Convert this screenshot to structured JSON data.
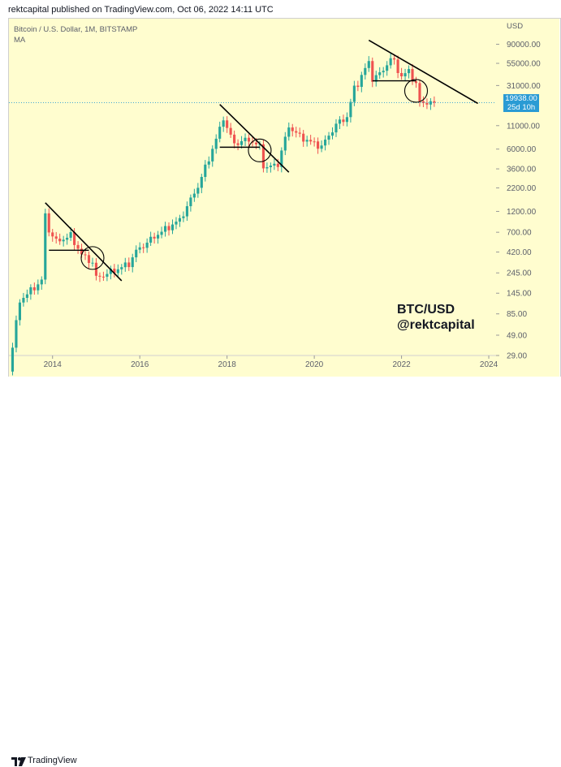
{
  "header": {
    "text": "rektcapital published on TradingView.com, Oct 06, 2022 14:11 UTC"
  },
  "footer": {
    "brand": "TradingView"
  },
  "legend": {
    "title": "Bitcoin / U.S. Dollar, 1M, BITSTAMP",
    "indicator": "MA"
  },
  "watermark": {
    "line1": "BTC/USD",
    "line2": "@rektcapital"
  },
  "price_axis": {
    "currency": "USD",
    "last_price": "19938.00",
    "countdown": "25d 10h"
  },
  "colors": {
    "background": "#fffdcf",
    "up": "#26a69a",
    "down": "#ef5350",
    "price_box": "#2a9bd4",
    "trendline": "#000000",
    "price_line": "#2a9bd4"
  },
  "chart_data": {
    "type": "candlestick",
    "title": "Bitcoin / U.S. Dollar, 1M, BITSTAMP",
    "y_scale": "log",
    "ylim": [
      29,
      130000
    ],
    "xlim": [
      "2013-01",
      "2024-03"
    ],
    "x_ticks": [
      "2014",
      "2016",
      "2018",
      "2020",
      "2022",
      "2024"
    ],
    "y_ticks": [
      "90000.00",
      "55000.00",
      "31000.00",
      "11000.00",
      "6000.00",
      "3600.00",
      "2200.00",
      "1200.00",
      "700.00",
      "420.00",
      "245.00",
      "145.00",
      "85.00",
      "49.00",
      "29.00"
    ],
    "last_price": 19938,
    "close_path": [
      [
        "2013-01",
        20
      ],
      [
        "2013-04",
        120
      ],
      [
        "2013-10",
        200
      ],
      [
        "2013-11",
        1100
      ],
      [
        "2013-12",
        740
      ],
      [
        "2014-02",
        550
      ],
      [
        "2014-06",
        640
      ],
      [
        "2014-09",
        390
      ],
      [
        "2014-12",
        320
      ],
      [
        "2015-01",
        215
      ],
      [
        "2015-06",
        260
      ],
      [
        "2015-10",
        310
      ],
      [
        "2015-12",
        430
      ],
      [
        "2016-06",
        670
      ],
      [
        "2016-12",
        960
      ],
      [
        "2017-05",
        2300
      ],
      [
        "2017-08",
        4700
      ],
      [
        "2017-11",
        10000
      ],
      [
        "2017-12",
        13800
      ],
      [
        "2018-01",
        10200
      ],
      [
        "2018-03",
        6900
      ],
      [
        "2018-07",
        7700
      ],
      [
        "2018-10",
        6300
      ],
      [
        "2018-11",
        4000
      ],
      [
        "2018-12",
        3700
      ],
      [
        "2019-03",
        4100
      ],
      [
        "2019-06",
        10800
      ],
      [
        "2019-09",
        8300
      ],
      [
        "2019-12",
        7200
      ],
      [
        "2020-03",
        6400
      ],
      [
        "2020-07",
        11300
      ],
      [
        "2020-10",
        13800
      ],
      [
        "2020-12",
        29000
      ],
      [
        "2021-01",
        33000
      ],
      [
        "2021-04",
        57000
      ],
      [
        "2021-05",
        37000
      ],
      [
        "2021-07",
        41500
      ],
      [
        "2021-10",
        61300
      ],
      [
        "2021-11",
        57000
      ],
      [
        "2022-01",
        38500
      ],
      [
        "2022-03",
        45500
      ],
      [
        "2022-05",
        31700
      ],
      [
        "2022-06",
        19900
      ],
      [
        "2022-08",
        20000
      ],
      [
        "2022-10",
        19938
      ]
    ],
    "annotations": {
      "trendlines": [
        {
          "start": [
            "2013-11",
            1500
          ],
          "end": [
            "2015-08",
            200
          ]
        },
        {
          "start": [
            "2017-11",
            19000
          ],
          "end": [
            "2019-06",
            3300
          ]
        },
        {
          "start": [
            "2021-04",
            100000
          ],
          "end": [
            "2023-10",
            19500
          ]
        }
      ],
      "support_lines": [
        {
          "start": [
            "2013-12",
            440
          ],
          "end": [
            "2014-11",
            440
          ]
        },
        {
          "start": [
            "2017-11",
            6300
          ],
          "end": [
            "2018-10",
            6300
          ]
        },
        {
          "start": [
            "2021-05",
            35000
          ],
          "end": [
            "2022-05",
            35000
          ]
        }
      ],
      "circles": [
        [
          "2014-12",
          360
        ],
        [
          "2018-10",
          5800
        ],
        [
          "2022-05",
          27000
        ]
      ]
    }
  }
}
